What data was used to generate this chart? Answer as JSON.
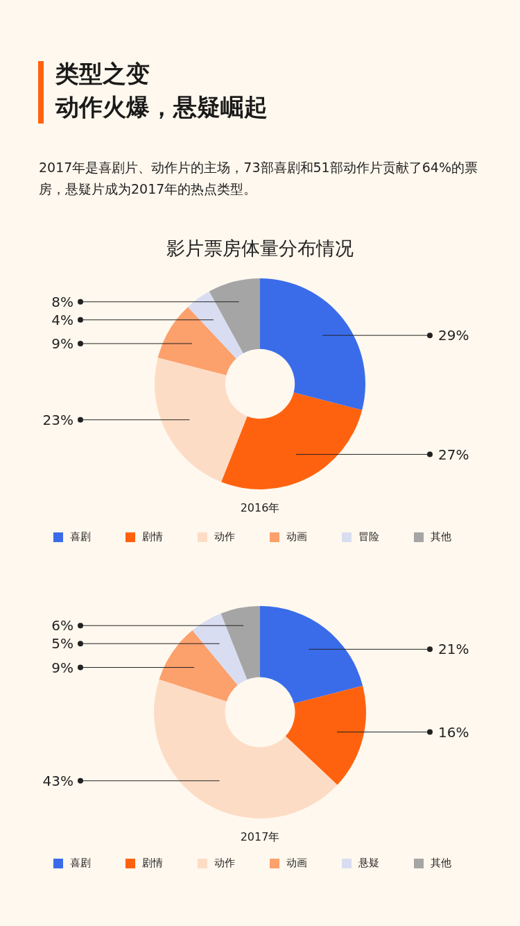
{
  "chart_data": [
    {
      "type": "donut",
      "title": "影片票房体量分布情况",
      "xlabel": "2016年",
      "annotations": [
        "类型之变",
        "动作火爆，悬疑崛起",
        "2017年是喜剧片、动作片的主场，73部喜剧和51部动作片贡献了64%的票房，悬疑片成为2017年的热点类型。"
      ],
      "categories": [
        "喜剧",
        "剧情",
        "动作",
        "动画",
        "冒险",
        "其他"
      ],
      "values": [
        29,
        27,
        23,
        9,
        4,
        8
      ],
      "value_labels": [
        "29%",
        "27%",
        "23%",
        "9%",
        "4%",
        "8%"
      ],
      "colors": [
        "#3a6cea",
        "#ff620e",
        "#fddcc6",
        "#fca06c",
        "#d9ddf1",
        "#a5a5a5"
      ],
      "legend": "bottom"
    },
    {
      "type": "donut",
      "xlabel": "2017年",
      "categories": [
        "喜剧",
        "剧情",
        "动作",
        "动画",
        "悬疑",
        "其他"
      ],
      "values": [
        21,
        16,
        43,
        9,
        5,
        6
      ],
      "value_labels": [
        "21%",
        "16%",
        "43%",
        "9%",
        "5%",
        "6%"
      ],
      "colors": [
        "#3a6cea",
        "#ff620e",
        "#fddcc6",
        "#fca06c",
        "#d9ddf1",
        "#a5a5a5"
      ],
      "legend": "bottom"
    }
  ]
}
